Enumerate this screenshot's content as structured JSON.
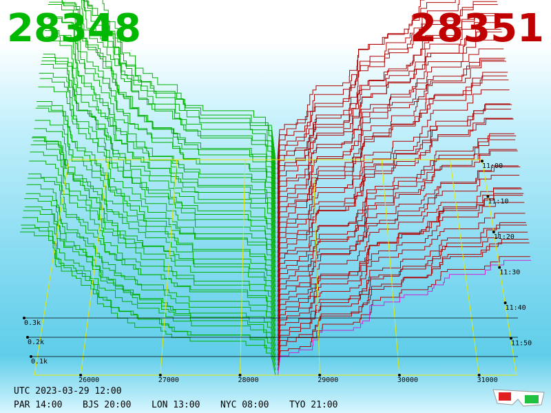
{
  "header": {
    "bid": "28348",
    "ask": "28351"
  },
  "price_axis": {
    "labels": [
      "26000",
      "27000",
      "28000",
      "29000",
      "30000",
      "31000"
    ]
  },
  "depth_axis": {
    "labels": [
      "0.3k",
      "0.2k",
      "0.1k"
    ]
  },
  "time_axis": {
    "labels": [
      "11:00",
      "11:10",
      "11:20",
      "11:30",
      "11:40",
      "11:50"
    ]
  },
  "footer": {
    "utc": "UTC 2023-03-29 12:00",
    "zones": [
      "PAR 14:00",
      "BJS 20:00",
      "LON 13:00",
      "NYC 08:00",
      "TYO 21:00"
    ]
  }
}
